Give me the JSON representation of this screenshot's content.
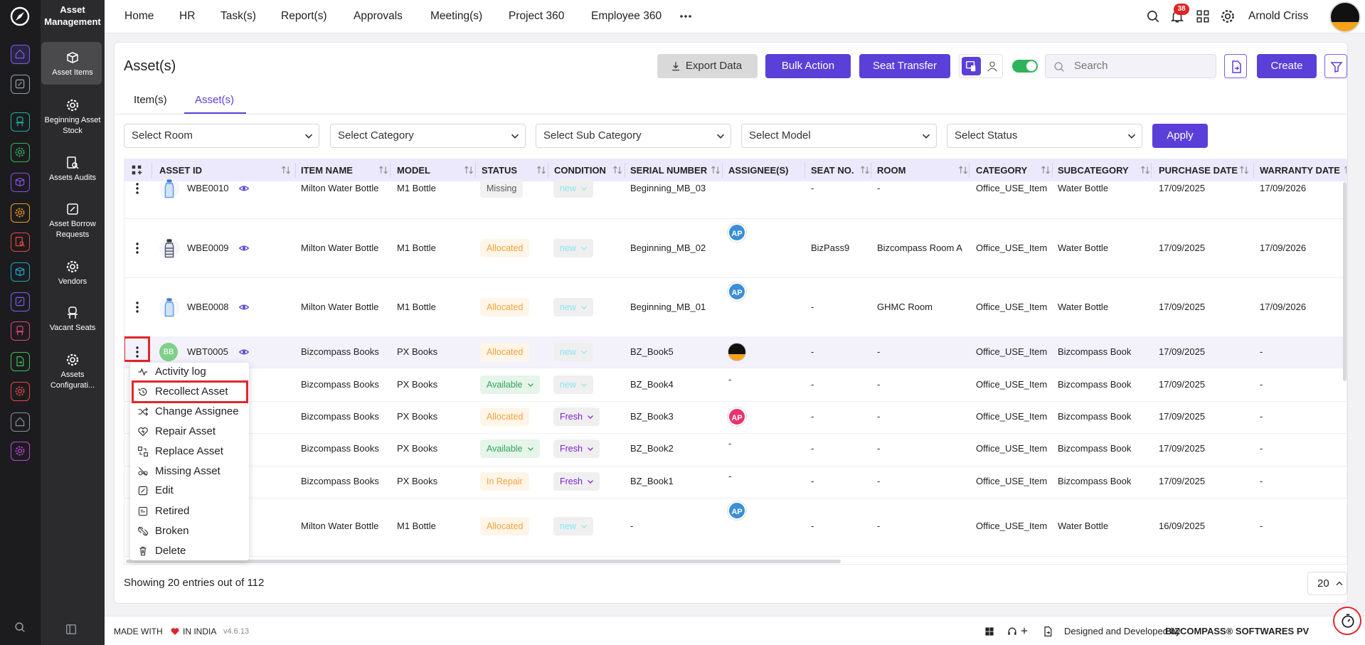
{
  "sidebar": {
    "title": "Asset Management",
    "items": [
      {
        "label": "Asset Items",
        "icon": "box",
        "active": true
      },
      {
        "label": "Beginning Asset Stock",
        "icon": "gear"
      },
      {
        "label": "Assets Audits",
        "icon": "audit"
      },
      {
        "label": "Asset Borrow Requests",
        "icon": "edit"
      },
      {
        "label": "Vendors",
        "icon": "gear"
      },
      {
        "label": "Vacant Seats",
        "icon": "seat"
      },
      {
        "label": "Assets Configurati...",
        "icon": "gear"
      }
    ]
  },
  "topnav": {
    "items": [
      "Home",
      "HR",
      "Task(s)",
      "Report(s)",
      "Approvals",
      "Meeting(s)",
      "Project 360",
      "Employee 360"
    ],
    "notification_count": "38",
    "user": "Arnold Criss"
  },
  "page": {
    "title": "Asset(s)",
    "buttons": {
      "export": "Export Data",
      "bulk": "Bulk Action",
      "seat_transfer": "Seat Transfer",
      "create": "Create"
    },
    "search_placeholder": "Search",
    "tabs": [
      {
        "label": "Item(s)"
      },
      {
        "label": "Asset(s)",
        "active": true
      }
    ],
    "filters": [
      "Select Room",
      "Select Category",
      "Select Sub Category",
      "Select Model",
      "Select Status"
    ],
    "apply": "Apply"
  },
  "table": {
    "columns": [
      "ASSET ID",
      "ITEM NAME",
      "MODEL",
      "STATUS",
      "CONDITION",
      "SERIAL NUMBER",
      "ASSIGNEE(S)",
      "SEAT NO.",
      "ROOM",
      "CATEGORY",
      "SUBCATEGORY",
      "PURCHASE DATE",
      "WARRANTY DATE"
    ],
    "rows": [
      {
        "asset_id": "WBE0010",
        "thumb": "bottle",
        "item_name": "Milton Water Bottle",
        "model": "M1 Bottle",
        "status": {
          "label": "Missing",
          "tone": "gray"
        },
        "condition": {
          "label": "new",
          "tone": "cyan"
        },
        "serial_number": "Beginning_MB_03",
        "seat_no": "-",
        "room": "-",
        "category": "Office_USE_Item",
        "subcategory": "Water Bottle",
        "purchase_date": "17/09/2025",
        "warranty_date": "17/09/2026"
      },
      {
        "asset_id": "WBE0009",
        "thumb": "bottle-dark",
        "item_name": "Milton Water Bottle",
        "model": "M1 Bottle",
        "status": {
          "label": "Allocated",
          "tone": "orange"
        },
        "condition": {
          "label": "new",
          "tone": "cyan"
        },
        "serial_number": "Beginning_MB_02",
        "assignee": "AP",
        "assignee_tone": "blue",
        "seat_no": "BizPass9",
        "room": "Bizcompass Room A",
        "category": "Office_USE_Item",
        "subcategory": "Water Bottle",
        "purchase_date": "17/09/2025",
        "warranty_date": "17/09/2026"
      },
      {
        "asset_id": "WBE0008",
        "thumb": "bottle",
        "item_name": "Milton Water Bottle",
        "model": "M1 Bottle",
        "status": {
          "label": "Allocated",
          "tone": "orange"
        },
        "condition": {
          "label": "new",
          "tone": "cyan"
        },
        "serial_number": "Beginning_MB_01",
        "assignee": "AP",
        "assignee_tone": "blue",
        "seat_no": "-",
        "room": "GHMC Room",
        "category": "Office_USE_Item",
        "subcategory": "Water Bottle",
        "purchase_date": "17/09/2025",
        "warranty_date": "17/09/2026"
      },
      {
        "asset_id": "WBT0005",
        "thumb_initials": "BB",
        "selected": true,
        "kebab_highlighted": true,
        "item_name": "Bizcompass Books",
        "model": "PX Books",
        "status": {
          "label": "Allocated",
          "tone": "orange"
        },
        "condition": {
          "label": "new",
          "tone": "cyan"
        },
        "serial_number": "BZ_Book5",
        "assignee_photo": true,
        "seat_no": "-",
        "room": "-",
        "category": "Office_USE_Item",
        "subcategory": "Bizcompass Book",
        "purchase_date": "17/09/2025",
        "warranty_date": "-"
      },
      {
        "item_name": "Bizcompass Books",
        "model": "PX Books",
        "status": {
          "label": "Available",
          "tone": "green",
          "dropdown": true
        },
        "condition": {
          "label": "new",
          "tone": "cyan"
        },
        "serial_number": "BZ_Book4",
        "assignee": "-",
        "seat_no": "-",
        "room": "-",
        "category": "Office_USE_Item",
        "subcategory": "Bizcompass Book",
        "purchase_date": "17/09/2025",
        "warranty_date": "-"
      },
      {
        "item_name": "Bizcompass Books",
        "model": "PX Books",
        "status": {
          "label": "Allocated",
          "tone": "orange"
        },
        "condition": {
          "label": "Fresh",
          "tone": "purple"
        },
        "serial_number": "BZ_Book3",
        "assignee": "AP",
        "assignee_tone": "pink",
        "seat_no": "-",
        "room": "-",
        "category": "Office_USE_Item",
        "subcategory": "Bizcompass Book",
        "purchase_date": "17/09/2025",
        "warranty_date": "-"
      },
      {
        "item_name": "Bizcompass Books",
        "model": "PX Books",
        "status": {
          "label": "Available",
          "tone": "green",
          "dropdown": true
        },
        "condition": {
          "label": "Fresh",
          "tone": "purple"
        },
        "serial_number": "BZ_Book2",
        "assignee": "-",
        "seat_no": "-",
        "room": "-",
        "category": "Office_USE_Item",
        "subcategory": "Bizcompass Book",
        "purchase_date": "17/09/2025",
        "warranty_date": "-"
      },
      {
        "item_name": "Bizcompass Books",
        "model": "PX Books",
        "status": {
          "label": "In Repair",
          "tone": "orange"
        },
        "condition": {
          "label": "Fresh",
          "tone": "purple"
        },
        "serial_number": "BZ_Book1",
        "assignee": "-",
        "seat_no": "-",
        "room": "-",
        "category": "Office_USE_Item",
        "subcategory": "Bizcompass Book",
        "purchase_date": "17/09/2025",
        "warranty_date": "-"
      },
      {
        "item_name": "Milton Water Bottle",
        "model": "M1 Bottle",
        "status": {
          "label": "Allocated",
          "tone": "orange"
        },
        "condition": {
          "label": "new",
          "tone": "cyan"
        },
        "serial_number": "-",
        "assignee": "AP",
        "assignee_tone": "blue",
        "seat_no": "-",
        "room": "-",
        "category": "Office_USE_Item",
        "subcategory": "Water Bottle",
        "purchase_date": "16/09/2025",
        "warranty_date": "-"
      }
    ]
  },
  "context_menu": {
    "items": [
      {
        "label": "Activity log",
        "icon": "activity"
      },
      {
        "label": "Recollect Asset",
        "icon": "history",
        "highlighted": true
      },
      {
        "label": "Change Assignee",
        "icon": "shuffle"
      },
      {
        "label": "Repair Asset",
        "icon": "repair"
      },
      {
        "label": "Replace Asset",
        "icon": "replace"
      },
      {
        "label": "Missing Asset",
        "icon": "missing"
      },
      {
        "label": "Edit",
        "icon": "edit"
      },
      {
        "label": "Retired",
        "icon": "retired"
      },
      {
        "label": "Broken",
        "icon": "broken"
      },
      {
        "label": "Delete",
        "icon": "delete"
      }
    ]
  },
  "pagination": {
    "summary": "Showing 20 entries out of 112",
    "page_size": "20"
  },
  "footer": {
    "made_with": "MADE WITH",
    "in_india": "IN INDIA",
    "version": "v4.6.13",
    "designed_by": "Designed and Developed by",
    "company": "BIZCOMPASS® SOFTWARES PV"
  }
}
